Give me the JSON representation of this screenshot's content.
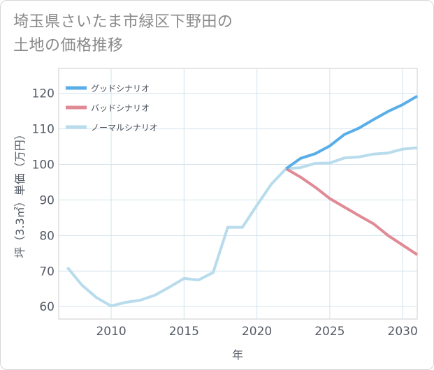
{
  "title": {
    "line1": "埼玉県さいたま市緑区下野田の",
    "line2": "土地の価格推移"
  },
  "chart_data": {
    "type": "line",
    "xlabel": "年",
    "ylabel": "坪（3.3㎡）単価（万円）",
    "xlim": [
      2006.4,
      2031
    ],
    "ylim": [
      56.5,
      127
    ],
    "xticks": [
      2010,
      2015,
      2020,
      2025,
      2030
    ],
    "yticks": [
      60,
      70,
      80,
      90,
      100,
      110,
      120
    ],
    "grid": true,
    "legend_position": "top-left",
    "series": [
      {
        "name": "グッドシナリオ",
        "color": "#5aaee8",
        "x": [
          2022,
          2023,
          2024,
          2025,
          2026,
          2027,
          2028,
          2029,
          2030,
          2031
        ],
        "y": [
          98.8,
          101.7,
          103.0,
          105.2,
          108.4,
          110.2,
          112.6,
          114.9,
          116.8,
          119.2
        ]
      },
      {
        "name": "バッドシナリオ",
        "color": "#e08a96",
        "x": [
          2022,
          2023,
          2024,
          2025,
          2026,
          2027,
          2028,
          2029,
          2030,
          2031
        ],
        "y": [
          98.8,
          96.4,
          93.6,
          90.4,
          88.0,
          85.6,
          83.3,
          80.0,
          77.3,
          74.6
        ]
      },
      {
        "name": "ノーマルシナリオ",
        "color": "#b8dcec",
        "x": [
          2007,
          2008,
          2009,
          2010,
          2011,
          2012,
          2013,
          2014,
          2015,
          2016,
          2017,
          2018,
          2019,
          2020,
          2021,
          2022,
          2023,
          2024,
          2025,
          2026,
          2027,
          2028,
          2029,
          2030,
          2031
        ],
        "y": [
          71.0,
          66.0,
          62.5,
          60.2,
          61.2,
          61.8,
          63.2,
          65.5,
          67.9,
          67.5,
          69.6,
          82.3,
          82.3,
          88.5,
          94.5,
          98.8,
          99.1,
          100.3,
          100.4,
          101.8,
          102.1,
          102.9,
          103.2,
          104.3,
          104.7
        ]
      }
    ]
  }
}
